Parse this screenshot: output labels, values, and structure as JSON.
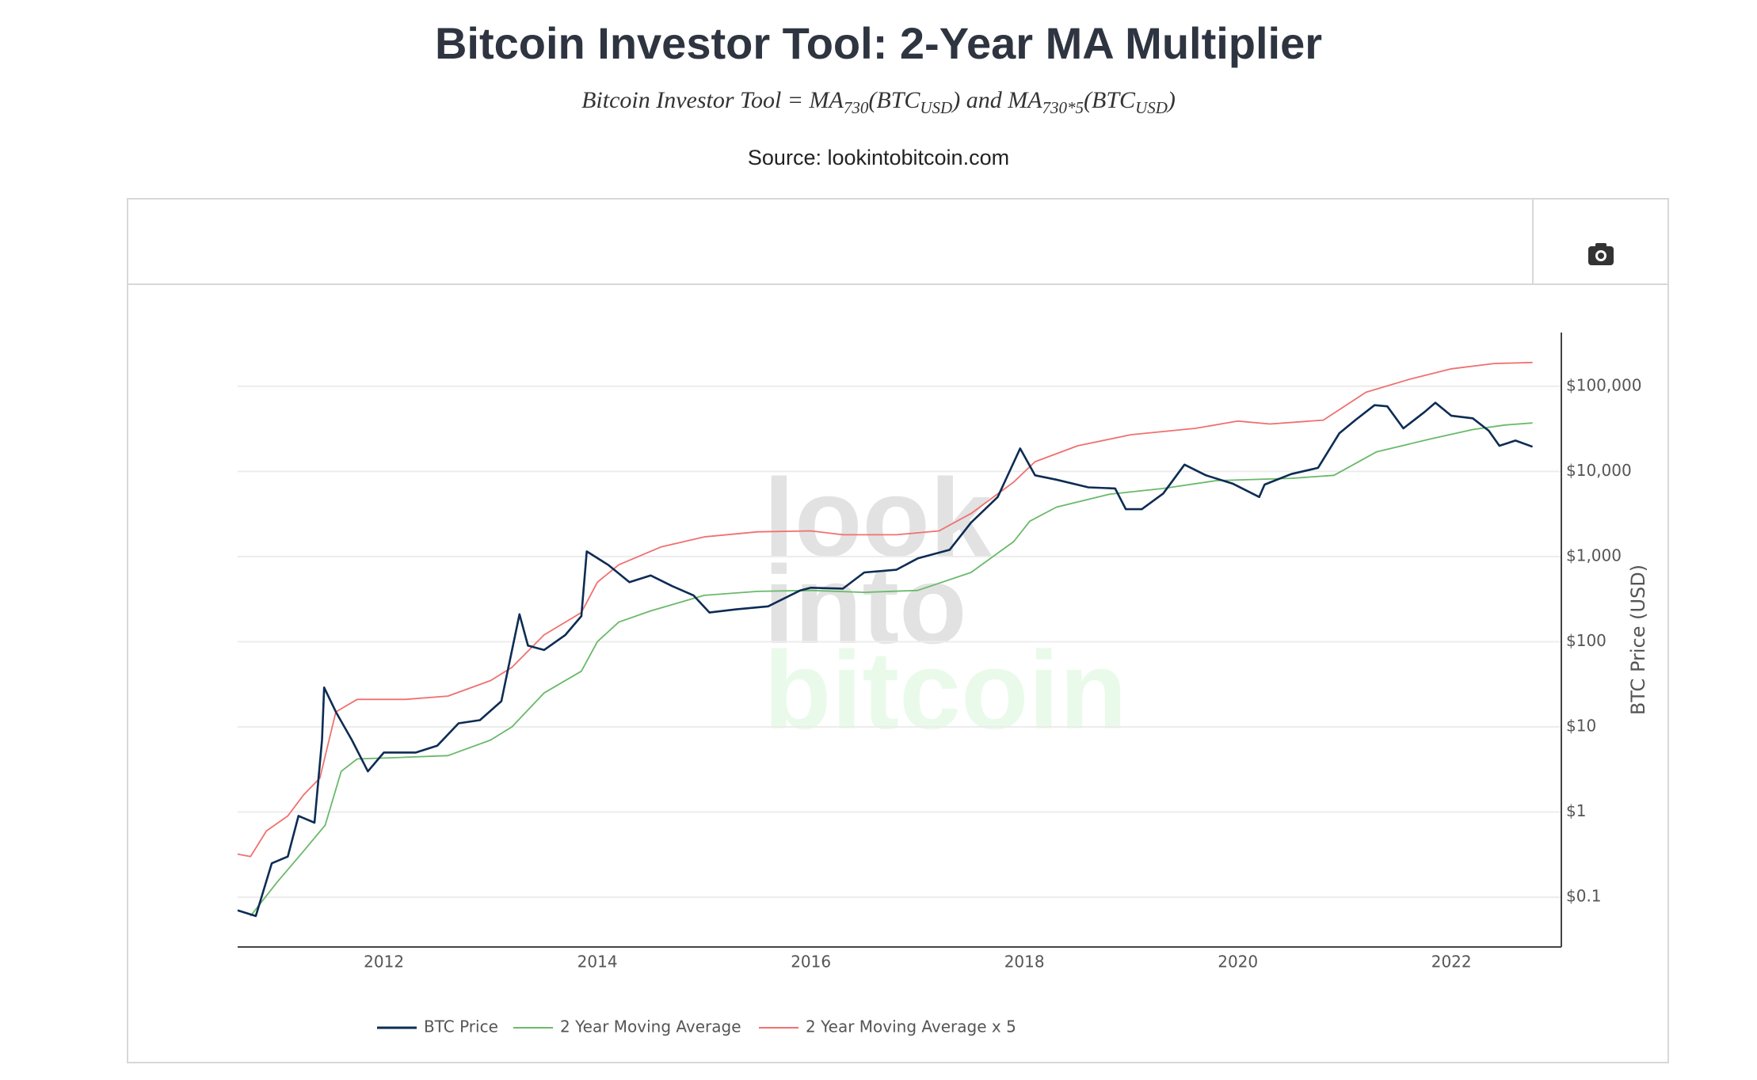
{
  "chart_data": {
    "type": "line",
    "title": "Bitcoin Investor Tool: 2-Year MA Multiplier",
    "subtitle": [
      "Bitcoin Investor Tool = MA",
      "730",
      "(BTC",
      "USD",
      ") and MA",
      "730*5",
      "(BTC",
      "USD",
      ")"
    ],
    "source": "Source: lookintobitcoin.com",
    "watermark": [
      "look",
      "into",
      "bitcoin"
    ],
    "y_label": "BTC Price (USD)",
    "log_y": true,
    "grid": true,
    "xlim": [
      2010.63,
      2023.03
    ],
    "xticks": [
      2012,
      2014,
      2016,
      2018,
      2020,
      2022
    ],
    "ylim": [
      0.026,
      427000
    ],
    "yticks": [
      {
        "value": 0.1,
        "label": "$0.1"
      },
      {
        "value": 1,
        "label": "$1"
      },
      {
        "value": 10,
        "label": "$10"
      },
      {
        "value": 100,
        "label": "$100"
      },
      {
        "value": 1000,
        "label": "$1,000"
      },
      {
        "value": 10000,
        "label": "$10,000"
      },
      {
        "value": 100000,
        "label": "$100,000"
      }
    ],
    "series": [
      {
        "name": "BTC Price",
        "color": "#0d2c54",
        "x": [
          2010.63,
          2010.8,
          2010.95,
          2011.1,
          2011.2,
          2011.35,
          2011.42,
          2011.44,
          2011.55,
          2011.7,
          2011.85,
          2012.0,
          2012.3,
          2012.5,
          2012.7,
          2012.9,
          2013.1,
          2013.27,
          2013.35,
          2013.5,
          2013.7,
          2013.85,
          2013.9,
          2014.1,
          2014.3,
          2014.5,
          2014.7,
          2014.9,
          2015.05,
          2015.3,
          2015.6,
          2015.9,
          2016.0,
          2016.3,
          2016.5,
          2016.8,
          2017.0,
          2017.3,
          2017.5,
          2017.75,
          2017.96,
          2018.1,
          2018.3,
          2018.6,
          2018.85,
          2018.95,
          2019.1,
          2019.3,
          2019.5,
          2019.7,
          2019.95,
          2020.2,
          2020.25,
          2020.5,
          2020.75,
          2020.95,
          2021.1,
          2021.28,
          2021.4,
          2021.55,
          2021.75,
          2021.85,
          2022.0,
          2022.2,
          2022.35,
          2022.45,
          2022.6,
          2022.76
        ],
        "values": [
          0.07,
          0.06,
          0.25,
          0.3,
          0.9,
          0.75,
          7,
          29,
          15,
          7,
          3,
          5,
          5,
          6,
          11,
          12,
          20,
          210,
          90,
          80,
          120,
          200,
          1150,
          800,
          500,
          600,
          450,
          350,
          220,
          240,
          260,
          400,
          430,
          420,
          650,
          700,
          950,
          1200,
          2500,
          5000,
          18600,
          9000,
          8000,
          6500,
          6300,
          3600,
          3600,
          5500,
          12000,
          9000,
          7200,
          5000,
          7000,
          9300,
          11000,
          28000,
          40000,
          60000,
          58000,
          32000,
          50000,
          64000,
          45000,
          42000,
          30000,
          20000,
          23000,
          19500
        ]
      },
      {
        "name": "2 Year Moving Average",
        "color": "#6ab96a",
        "x": [
          2010.75,
          2011.0,
          2011.25,
          2011.45,
          2011.6,
          2011.75,
          2012.0,
          2012.6,
          2013.0,
          2013.2,
          2013.5,
          2013.85,
          2014.0,
          2014.2,
          2014.5,
          2015.0,
          2015.5,
          2016.0,
          2016.5,
          2017.0,
          2017.5,
          2017.9,
          2018.05,
          2018.3,
          2018.8,
          2019.3,
          2019.8,
          2020.5,
          2020.9,
          2021.3,
          2021.8,
          2022.2,
          2022.5,
          2022.76
        ],
        "values": [
          0.06,
          0.15,
          0.35,
          0.7,
          3,
          4.2,
          4.3,
          4.6,
          7,
          10,
          25,
          45,
          100,
          170,
          230,
          350,
          390,
          400,
          380,
          400,
          650,
          1500,
          2600,
          3800,
          5400,
          6300,
          7800,
          8300,
          9000,
          17000,
          24000,
          31000,
          35000,
          37000
        ]
      },
      {
        "name": "2 Year Moving Average x 5",
        "color": "#f07070",
        "x": [
          2010.63,
          2010.75,
          2010.9,
          2011.1,
          2011.25,
          2011.4,
          2011.55,
          2011.75,
          2012.2,
          2012.6,
          2013.0,
          2013.2,
          2013.5,
          2013.85,
          2014.0,
          2014.2,
          2014.6,
          2015.0,
          2015.5,
          2016.0,
          2016.3,
          2016.8,
          2017.2,
          2017.5,
          2017.9,
          2018.1,
          2018.5,
          2019.0,
          2019.6,
          2020.0,
          2020.3,
          2020.8,
          2021.2,
          2021.6,
          2022.0,
          2022.4,
          2022.76
        ],
        "values": [
          0.32,
          0.3,
          0.6,
          0.9,
          1.6,
          2.5,
          15,
          21,
          21,
          23,
          35,
          50,
          120,
          220,
          500,
          800,
          1300,
          1700,
          1950,
          2000,
          1800,
          1800,
          2000,
          3200,
          7500,
          13000,
          20000,
          27000,
          32000,
          39000,
          36000,
          40000,
          85000,
          120000,
          160000,
          185000,
          190000
        ]
      }
    ]
  }
}
